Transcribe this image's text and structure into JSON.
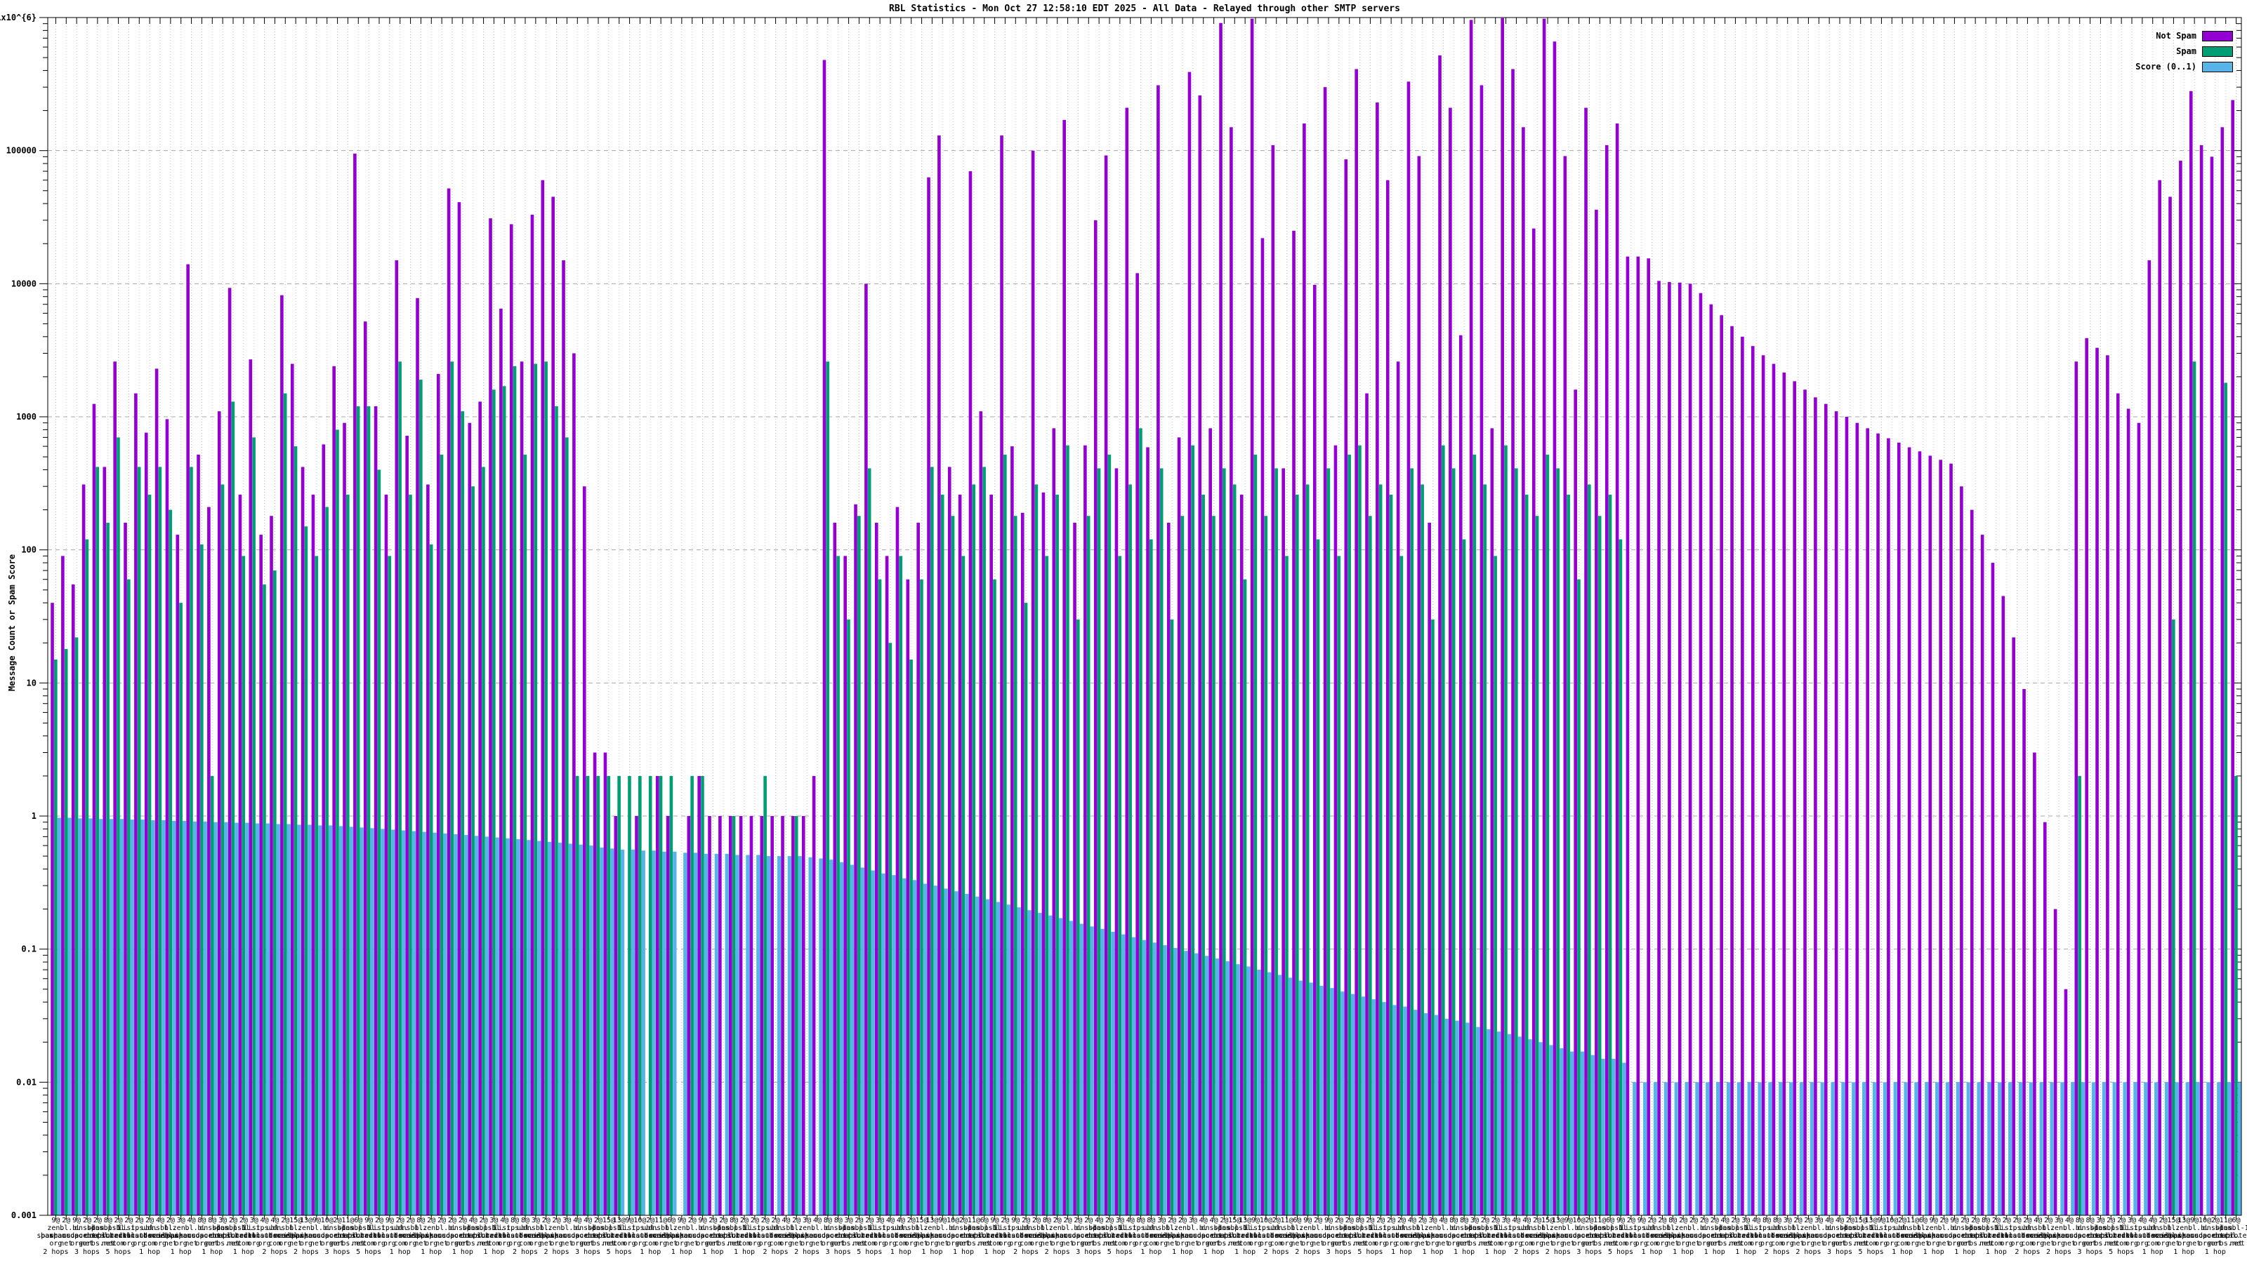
{
  "title": "RBL Statistics - Mon Oct 27 12:58:10 EDT 2025 - All Data - Relayed through other SMTP servers",
  "y_axis": {
    "label": "Message Count or Spam Score",
    "tick_labels": [
      "1x10^{6}",
      "100000",
      "10000",
      "1000",
      "100",
      "10",
      "1",
      "0.1",
      "0.01",
      "0.001"
    ]
  },
  "legend": {
    "items": [
      {
        "label": "Not Spam",
        "color": "#9400d3"
      },
      {
        "label": "Spam",
        "color": "#009e73"
      },
      {
        "label": "Score (0..1)",
        "color": "#56b4e9"
      }
    ]
  },
  "chart_data": {
    "type": "bar",
    "title": "RBL Statistics - Mon Oct 27 12:58:10 EDT 2025 - All Data - Relayed through other SMTP servers",
    "ylabel": "Message Count or Spam Score",
    "log_y": true,
    "ylim": [
      0.001,
      1000000
    ],
    "grid": "dotted vertical per cluster, dashed horizontal per decade",
    "legend_position": "top-right",
    "series_names": [
      "Not Spam",
      "Spam",
      "Score (0..1)"
    ],
    "colors": {
      "not_spam": "#9400d3",
      "spam": "#009e73",
      "score": "#56b4e9",
      "grid_minor": "#c0c0c0",
      "grid_major": "#a8a8a8",
      "axis": "#000000"
    },
    "not_spam": [
      40,
      90,
      55,
      310,
      1250,
      420,
      2600,
      160,
      1500,
      760,
      2300,
      960,
      130,
      14000,
      520,
      210,
      1100,
      9300,
      260,
      2700,
      130,
      180,
      8200,
      2500,
      420,
      260,
      620,
      2400,
      900,
      95000,
      5200,
      1200,
      260,
      15000,
      720,
      7800,
      310,
      2100,
      52000,
      41000,
      900,
      1300,
      31000,
      6500,
      28000,
      2600,
      33000,
      60000,
      45000,
      15000,
      3000,
      300,
      3,
      3,
      1,
      0,
      1,
      0,
      2,
      1,
      0,
      1,
      2,
      1,
      1,
      1,
      1,
      1,
      1,
      1,
      1,
      1,
      1,
      2,
      480000,
      160,
      90,
      220,
      10000,
      160,
      90,
      210,
      60,
      160,
      63000,
      130000,
      420,
      260,
      70000,
      1100,
      260,
      130000,
      600,
      190,
      100000,
      270,
      820,
      170000,
      160,
      610,
      30000,
      92000,
      410,
      210000,
      12000,
      590,
      310000,
      160,
      700,
      390000,
      260000,
      820,
      910000,
      150000,
      260,
      980000,
      22000,
      110000,
      410,
      25000,
      160000,
      9800,
      300000,
      610,
      86000,
      410000,
      1500,
      230000,
      60000,
      2600,
      330000,
      91000,
      160,
      520000,
      210000,
      4100,
      960000,
      310000,
      820,
      990000,
      410000,
      150000,
      26000,
      980000,
      660000,
      91000,
      1600,
      210000,
      36000,
      110000,
      160000,
      16000,
      16000,
      15500,
      10500,
      10300,
      10200,
      10000,
      8500,
      7000,
      5800,
      4800,
      4000,
      3400,
      2900,
      2500,
      2150,
      1850,
      1600,
      1400,
      1250,
      1100,
      1000,
      900,
      820,
      750,
      690,
      640,
      590,
      550,
      510,
      475,
      445,
      300,
      200,
      130,
      80,
      45,
      22,
      9,
      3,
      0.9,
      0.2,
      0.05,
      2600,
      3900,
      3300,
      2900,
      1500,
      1150,
      900,
      15000,
      60000,
      45000,
      84000,
      280000,
      110000,
      90000,
      150000,
      240000
    ],
    "spam": [
      15,
      18,
      22,
      120,
      420,
      160,
      700,
      60,
      420,
      260,
      420,
      200,
      40,
      420,
      110,
      2,
      310,
      1300,
      90,
      700,
      55,
      70,
      1500,
      600,
      150,
      90,
      210,
      800,
      260,
      1200,
      1200,
      400,
      90,
      2600,
      260,
      1900,
      110,
      520,
      2600,
      1100,
      300,
      420,
      1600,
      1700,
      2400,
      520,
      2500,
      2600,
      1200,
      700,
      2,
      2,
      2,
      2,
      2,
      2,
      2,
      2,
      2,
      2,
      0,
      2,
      2,
      0,
      0,
      1,
      0,
      0,
      2,
      0,
      0,
      1,
      0,
      0,
      2600,
      90,
      30,
      180,
      410,
      60,
      20,
      90,
      15,
      60,
      420,
      260,
      180,
      90,
      310,
      420,
      60,
      520,
      180,
      40,
      310,
      90,
      260,
      610,
      30,
      180,
      410,
      520,
      90,
      310,
      820,
      120,
      410,
      30,
      180,
      610,
      260,
      180,
      410,
      310,
      60,
      520,
      180,
      410,
      90,
      260,
      310,
      120,
      410,
      90,
      520,
      610,
      180,
      310,
      260,
      90,
      410,
      310,
      30,
      610,
      410,
      120,
      520,
      310,
      90,
      610,
      410,
      260,
      180,
      520,
      410,
      260,
      60,
      310,
      180,
      260,
      120,
      0,
      0,
      0,
      0,
      0,
      0,
      0,
      0,
      0,
      0,
      0,
      0,
      0,
      0,
      0,
      0,
      0,
      0,
      0,
      0,
      0,
      0,
      0,
      0,
      0,
      0,
      0,
      0,
      0,
      0,
      0,
      0,
      0,
      0,
      0,
      0,
      0,
      0,
      0,
      0,
      0,
      0,
      0,
      2,
      0,
      0,
      0,
      0,
      0,
      0,
      0,
      0,
      30,
      0,
      2600,
      0,
      0,
      1800,
      2
    ],
    "score": [
      0.97,
      0.97,
      0.96,
      0.96,
      0.95,
      0.95,
      0.95,
      0.94,
      0.94,
      0.93,
      0.93,
      0.92,
      0.92,
      0.91,
      0.91,
      0.9,
      0.9,
      0.89,
      0.89,
      0.88,
      0.88,
      0.87,
      0.87,
      0.86,
      0.86,
      0.85,
      0.85,
      0.84,
      0.83,
      0.82,
      0.81,
      0.8,
      0.79,
      0.78,
      0.77,
      0.76,
      0.75,
      0.74,
      0.73,
      0.72,
      0.71,
      0.7,
      0.69,
      0.68,
      0.67,
      0.66,
      0.65,
      0.64,
      0.63,
      0.62,
      0.61,
      0.6,
      0.58,
      0.57,
      0.56,
      0.56,
      0.55,
      0.55,
      0.54,
      0.54,
      0.53,
      0.53,
      0.52,
      0.52,
      0.52,
      0.51,
      0.51,
      0.51,
      0.5,
      0.5,
      0.5,
      0.5,
      0.49,
      0.48,
      0.47,
      0.45,
      0.43,
      0.41,
      0.39,
      0.37,
      0.36,
      0.34,
      0.33,
      0.31,
      0.3,
      0.285,
      0.272,
      0.26,
      0.248,
      0.237,
      0.226,
      0.216,
      0.206,
      0.196,
      0.187,
      0.179,
      0.171,
      0.163,
      0.155,
      0.148,
      0.142,
      0.135,
      0.129,
      0.123,
      0.117,
      0.112,
      0.107,
      0.102,
      0.097,
      0.093,
      0.089,
      0.085,
      0.081,
      0.077,
      0.074,
      0.07,
      0.067,
      0.064,
      0.061,
      0.058,
      0.056,
      0.053,
      0.051,
      0.048,
      0.046,
      0.044,
      0.042,
      0.04,
      0.038,
      0.037,
      0.035,
      0.033,
      0.032,
      0.03,
      0.029,
      0.028,
      0.026,
      0.025,
      0.024,
      0.023,
      0.022,
      0.021,
      0.02,
      0.019,
      0.018,
      0.017,
      0.017,
      0.016,
      0.015,
      0.015,
      0.014,
      0.01,
      0.01,
      0.01,
      0.01,
      0.01,
      0.01,
      0.01,
      0.01,
      0.01,
      0.01,
      0.01,
      0.01,
      0.01,
      0.01,
      0.01,
      0.01,
      0.01,
      0.01,
      0.01,
      0.01,
      0.01,
      0.01,
      0.01,
      0.01,
      0.01,
      0.01,
      0.01,
      0.01,
      0.01,
      0.01,
      0.01,
      0.01,
      0.01,
      0.01,
      0.01,
      0.01,
      0.01,
      0.01,
      0.01,
      0.01,
      0.01,
      0.01,
      0.01,
      0.01,
      0.01,
      0.01,
      0.01,
      0.01,
      0.01,
      0.01,
      0.01,
      0.01,
      0.01,
      0.01,
      0.01,
      0.01,
      0.01,
      0.01,
      0.01
    ],
    "xtick": {
      "note": "x tick labels are dense multi-line RBL host labels that overlap into garble; pattern cycles below",
      "counts": [
        9,
        2,
        9,
        2,
        2,
        8,
        2,
        2,
        2,
        2,
        4,
        2,
        3,
        4,
        8,
        8,
        3,
        2,
        2,
        3,
        4,
        4,
        2,
        15,
        13,
        9,
        10,
        2,
        11,
        6
      ],
      "hosts": [
        "zen.spamhaus.org",
        "bl.spamcop.net",
        "b.barracudacentral.org",
        "dnsbl.sorbs.net",
        "spam.dnsbl.sorbs.net",
        "dnsbl-1.uceprotect.net",
        "psbl.surriel.com",
        "list.dsbl.org",
        "ips.backscatterer.org",
        "ubl.unsubscore.com",
        "dnsbl.dronebl.org",
        "bl.mailspike.net"
      ],
      "hops": [
        "2 hops",
        "1 hop",
        "1 hop",
        "3 hops",
        "1 hop",
        "2 hops",
        "5 hops",
        "1 hop"
      ]
    }
  }
}
